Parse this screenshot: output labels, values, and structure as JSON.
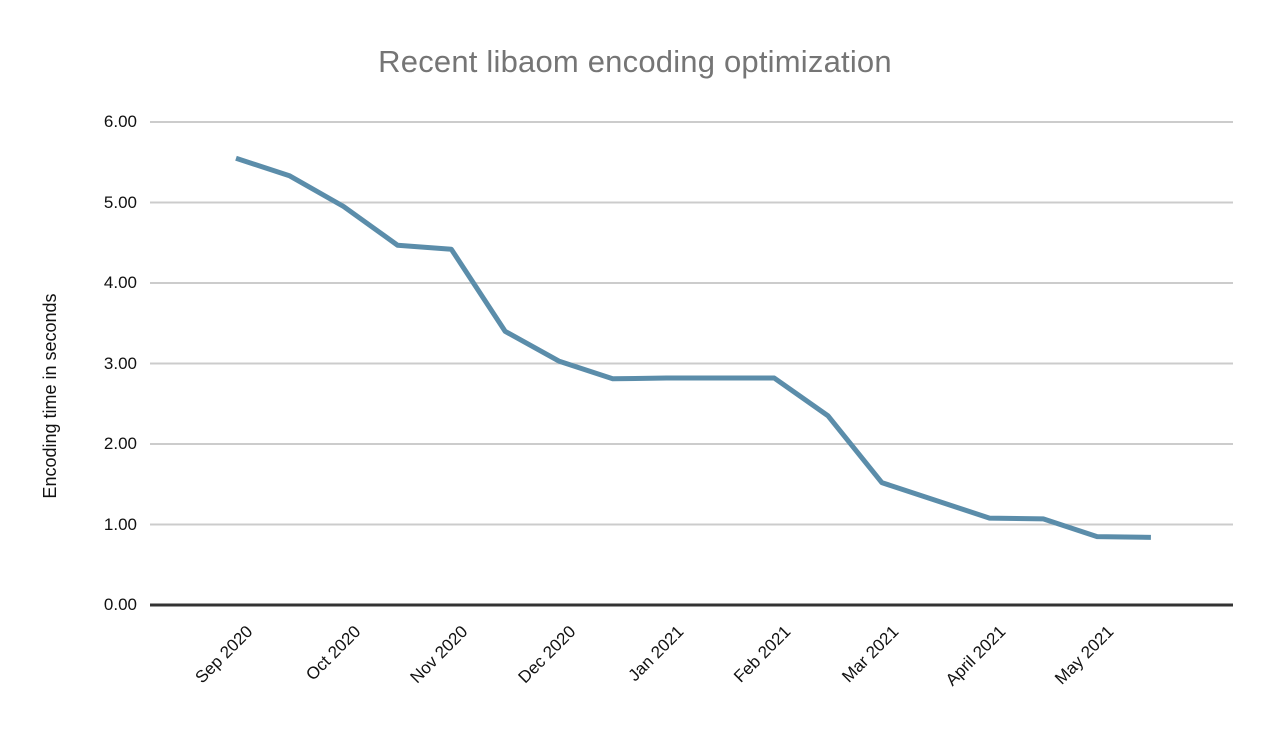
{
  "chart_data": {
    "type": "line",
    "title": "Recent libaom encoding optimization",
    "xlabel": "",
    "ylabel": "Encoding time in seconds",
    "ylim": [
      0,
      6
    ],
    "y_tick_labels": [
      "0.00",
      "1.00",
      "2.00",
      "3.00",
      "4.00",
      "5.00",
      "6.00"
    ],
    "x_tick_labels": [
      "Sep 2020",
      "Oct 2020",
      "Nov 2020",
      "Dec 2020",
      "Jan 2021",
      "Feb 2021",
      "Mar 2021",
      "April 2021",
      "May 2021"
    ],
    "points_per_month": 2,
    "grid": true,
    "legend_position": "none",
    "series": [
      {
        "name": "Encoding time in seconds",
        "values": [
          5.55,
          5.33,
          4.95,
          4.47,
          4.42,
          3.4,
          3.03,
          2.81,
          2.82,
          2.82,
          2.82,
          2.35,
          1.52,
          1.3,
          1.08,
          1.07,
          0.85,
          0.84
        ]
      }
    ],
    "colors": {
      "line": "#5b8daa",
      "gridline": "#cccccc",
      "axis": "#333333",
      "title": "#757575",
      "tick_text": "#111111"
    }
  }
}
